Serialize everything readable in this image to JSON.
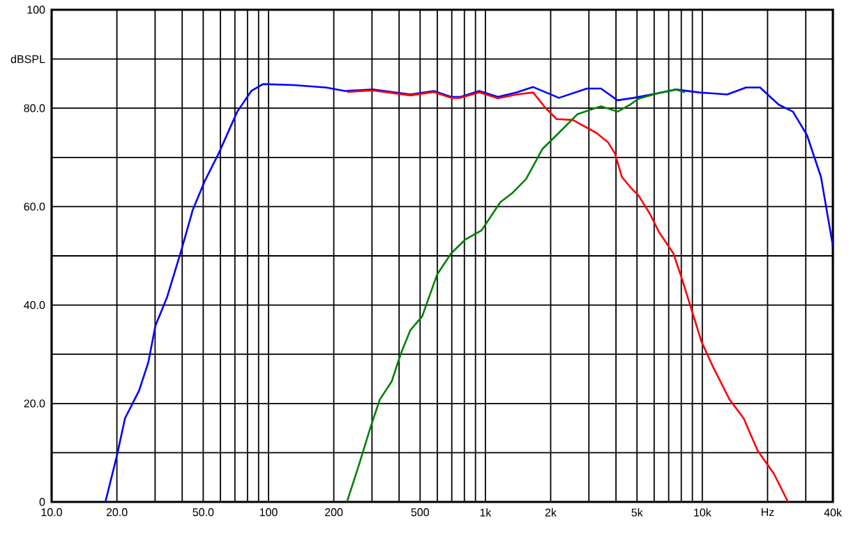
{
  "chart_data": {
    "type": "line",
    "ylabel": "dBSPL",
    "log": "x",
    "grid": true,
    "marker": "none",
    "line_style": "solid",
    "xlim": [
      10,
      40000
    ],
    "ylim": [
      0,
      100
    ],
    "xticks": [
      {
        "value": 10,
        "label": "10.0"
      },
      {
        "value": 20,
        "label": "20.0"
      },
      {
        "value": 30,
        "label": null
      },
      {
        "value": 40,
        "label": null
      },
      {
        "value": 50,
        "label": "50.0"
      },
      {
        "value": 60,
        "label": null
      },
      {
        "value": 70,
        "label": null
      },
      {
        "value": 80,
        "label": null
      },
      {
        "value": 90,
        "label": null
      },
      100,
      200,
      {
        "value": 300,
        "label": null
      },
      {
        "value": 400,
        "label": null
      },
      500,
      {
        "value": 600,
        "label": null
      },
      {
        "value": 700,
        "label": null
      },
      {
        "value": 800,
        "label": null
      },
      {
        "value": 900,
        "label": null
      },
      {
        "value": 1000,
        "label": "1k"
      },
      {
        "value": 2000,
        "label": "2k"
      },
      {
        "value": 3000,
        "label": null
      },
      {
        "value": 4000,
        "label": null
      },
      {
        "value": 5000,
        "label": "5k"
      },
      {
        "value": 6000,
        "label": null
      },
      {
        "value": 7000,
        "label": null
      },
      {
        "value": 8000,
        "label": null
      },
      {
        "value": 9000,
        "label": null
      },
      {
        "value": 10000,
        "label": "10k"
      },
      {
        "value": 20000,
        "label": "Hz"
      },
      {
        "value": 30000,
        "label": null
      },
      {
        "value": 40000,
        "label": "40k"
      }
    ],
    "yticks": [
      0,
      {
        "value": 10,
        "label": null
      },
      {
        "value": 20,
        "label": "20.0"
      },
      {
        "value": 30,
        "label": null
      },
      {
        "value": 40,
        "label": "40.0"
      },
      {
        "value": 50,
        "label": null
      },
      {
        "value": 60,
        "label": "60.0"
      },
      {
        "value": 70,
        "label": null
      },
      {
        "value": 80,
        "label": "80.0"
      },
      {
        "value": 90,
        "label": null
      },
      100
    ],
    "series": [
      {
        "color": "#0000ff",
        "x": [
          17.7,
          20,
          21.8,
          25.3,
          27.9,
          30.1,
          34,
          39.5,
          44.8,
          50.7,
          58.9,
          71.8,
          83.3,
          94.4,
          130,
          184,
          225,
          303,
          451,
          578,
          695,
          768,
          937,
          1143,
          1394,
          1660,
          2183,
          2940,
          3411,
          4064,
          4831,
          6194,
          7555,
          9680,
          13040,
          15910,
          18470,
          22530,
          26180,
          30400,
          35270,
          40000
        ],
        "values": [
          0,
          9.4,
          17,
          22.6,
          28.3,
          35.8,
          41.5,
          50.9,
          59.4,
          65.1,
          70.8,
          79.3,
          83.5,
          84.9,
          84.7,
          84.2,
          83.5,
          83.8,
          82.8,
          83.5,
          82.3,
          82.3,
          83.5,
          82.3,
          83.2,
          84.3,
          82.1,
          84,
          84,
          81.6,
          82.1,
          83,
          83.8,
          83.2,
          82.8,
          84.2,
          84.2,
          80.7,
          79.3,
          74.5,
          66,
          52
        ]
      },
      {
        "color": "#ff0000",
        "x": [
          230,
          303,
          451,
          578,
          695,
          768,
          937,
          1143,
          1394,
          1660,
          1880,
          2128,
          2530,
          3243,
          3673,
          3956,
          4263,
          4710,
          5075,
          5741,
          6342,
          7362,
          8128,
          8978,
          9910,
          11220,
          13360,
          15510,
          18000,
          21410,
          24850
        ],
        "values": [
          83.3,
          83.6,
          82.6,
          83.3,
          82.1,
          82.1,
          83.2,
          82.0,
          82.8,
          83.2,
          80.2,
          77.8,
          77.6,
          75,
          73.1,
          70.8,
          66,
          63.7,
          62.3,
          58.5,
          54.7,
          50.5,
          44.8,
          38.7,
          32.6,
          27.4,
          20.8,
          17,
          10.4,
          5.7,
          0
        ]
      },
      {
        "color": "#008000",
        "x": [
          230,
          261,
          295,
          326,
          370,
          408,
          451,
          511,
          599,
          695,
          807,
          961,
          1172,
          1327,
          1540,
          1831,
          2183,
          2660,
          3411,
          4064,
          4603,
          5075,
          6194,
          7555,
          8323
        ],
        "values": [
          0,
          7.5,
          15.1,
          20.8,
          24.5,
          30.2,
          34.9,
          37.7,
          46.2,
          50.5,
          53.3,
          55.2,
          60.9,
          62.7,
          65.6,
          71.7,
          75,
          78.8,
          80.4,
          79.3,
          80.6,
          81.9,
          83,
          83.8,
          83.2
        ]
      }
    ]
  }
}
